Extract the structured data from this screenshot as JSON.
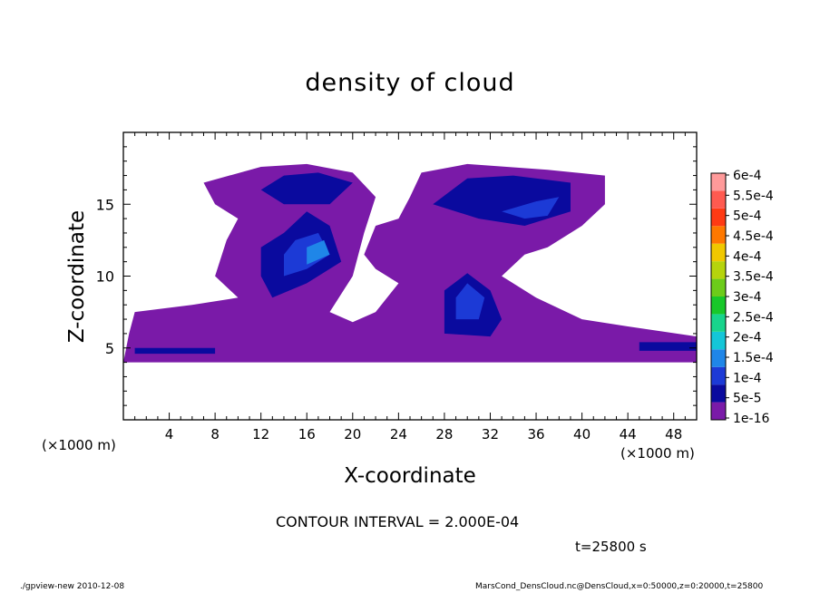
{
  "chart_data": {
    "type": "heatmap",
    "title": "density of cloud",
    "xlabel": "X-coordinate",
    "ylabel": "Z-coordinate",
    "x_unit_label": "(×1000 m)",
    "xlim": [
      0,
      50
    ],
    "ylim": [
      0,
      20
    ],
    "x_ticks": [
      4,
      8,
      12,
      16,
      20,
      24,
      28,
      32,
      36,
      40,
      44,
      48
    ],
    "y_ticks": [
      5,
      10,
      15
    ],
    "grid": false,
    "colorbar": {
      "placement": "right",
      "labels": [
        "1e-16",
        "5e-5",
        "1e-4",
        "1.5e-4",
        "2e-4",
        "2.5e-4",
        "3e-4",
        "3.5e-4",
        "4e-4",
        "4.5e-4",
        "5e-4",
        "5.5e-4",
        "6e-4"
      ],
      "colors": [
        "#7a1aa8",
        "#0a0a9e",
        "#1c3ad6",
        "#1f86e8",
        "#14c6d8",
        "#18d48c",
        "#18c82a",
        "#6ccc1a",
        "#b6d40c",
        "#f0c800",
        "#ff7800",
        "#ff3a14",
        "#ff5a50",
        "#ff9a9a"
      ]
    },
    "regions": [
      {
        "level": "1e-16",
        "shape": [
          [
            0,
            4.0
          ],
          [
            50,
            4.0
          ],
          [
            50,
            5.8
          ],
          [
            44,
            6.5
          ],
          [
            40,
            7.0
          ],
          [
            36,
            8.5
          ],
          [
            33,
            10.0
          ],
          [
            35,
            11.5
          ],
          [
            37,
            12.0
          ],
          [
            40,
            13.5
          ],
          [
            42,
            15.0
          ],
          [
            42,
            17.0
          ],
          [
            37,
            17.4
          ],
          [
            30,
            17.8
          ],
          [
            26,
            17.2
          ],
          [
            25,
            15.5
          ],
          [
            24,
            14.0
          ],
          [
            22,
            13.5
          ],
          [
            21,
            11.5
          ],
          [
            22,
            10.5
          ],
          [
            24,
            9.5
          ],
          [
            22,
            7.5
          ],
          [
            20,
            6.8
          ],
          [
            18,
            7.5
          ],
          [
            20,
            10.0
          ],
          [
            21,
            13.0
          ],
          [
            22,
            15.5
          ],
          [
            20,
            17.2
          ],
          [
            16,
            17.8
          ],
          [
            12,
            17.6
          ],
          [
            7,
            16.5
          ],
          [
            8,
            15.0
          ],
          [
            10,
            14.0
          ],
          [
            9,
            12.5
          ],
          [
            8,
            10.0
          ],
          [
            10,
            8.5
          ],
          [
            6,
            8.0
          ],
          [
            1,
            7.5
          ],
          [
            0.5,
            6.0
          ]
        ]
      },
      {
        "level": "5e-5",
        "shape": [
          [
            13,
            8.5
          ],
          [
            16,
            9.5
          ],
          [
            19,
            11.0
          ],
          [
            18,
            13.5
          ],
          [
            16,
            14.5
          ],
          [
            14,
            13.0
          ],
          [
            12,
            12.0
          ],
          [
            12,
            10.0
          ]
        ]
      },
      {
        "level": "5e-5",
        "shape": [
          [
            28,
            6.0
          ],
          [
            32,
            5.8
          ],
          [
            33,
            7.0
          ],
          [
            32,
            9.0
          ],
          [
            30,
            10.2
          ],
          [
            28,
            9.0
          ]
        ]
      },
      {
        "level": "5e-5",
        "shape": [
          [
            27,
            15.0
          ],
          [
            30,
            16.8
          ],
          [
            34,
            17.0
          ],
          [
            39,
            16.5
          ],
          [
            39,
            14.5
          ],
          [
            35,
            13.5
          ],
          [
            31,
            14.0
          ]
        ]
      },
      {
        "level": "5e-5",
        "shape": [
          [
            12,
            16.0
          ],
          [
            14,
            17.0
          ],
          [
            17,
            17.2
          ],
          [
            20,
            16.5
          ],
          [
            18,
            15.0
          ],
          [
            14,
            15.0
          ]
        ]
      },
      {
        "level": "5e-5",
        "shape": [
          [
            1,
            4.6
          ],
          [
            8,
            4.6
          ],
          [
            8,
            5.0
          ],
          [
            1,
            5.0
          ]
        ]
      },
      {
        "level": "5e-5",
        "shape": [
          [
            45,
            4.8
          ],
          [
            50,
            4.8
          ],
          [
            50,
            5.4
          ],
          [
            45,
            5.4
          ]
        ]
      },
      {
        "level": "1e-4",
        "shape": [
          [
            14,
            10.0
          ],
          [
            16,
            10.5
          ],
          [
            18,
            11.5
          ],
          [
            17,
            13.0
          ],
          [
            15,
            12.5
          ],
          [
            14,
            11.5
          ]
        ]
      },
      {
        "level": "1e-4",
        "shape": [
          [
            29,
            7.0
          ],
          [
            31,
            7.0
          ],
          [
            31.5,
            8.5
          ],
          [
            30,
            9.5
          ],
          [
            29,
            8.5
          ]
        ]
      },
      {
        "level": "1e-4",
        "shape": [
          [
            33,
            14.5
          ],
          [
            36,
            15.2
          ],
          [
            38,
            15.5
          ],
          [
            37,
            14.2
          ],
          [
            35,
            14.0
          ]
        ]
      },
      {
        "level": "1.5e-4",
        "shape": [
          [
            16,
            10.8
          ],
          [
            18,
            11.5
          ],
          [
            17.5,
            12.5
          ],
          [
            16,
            12.0
          ]
        ]
      }
    ]
  },
  "annotations": {
    "contour_interval": "CONTOUR INTERVAL = 2.000E-04",
    "time": "t=25800 s"
  },
  "footer": {
    "left": "./gpview-new   2010-12-08",
    "right": "MarsCond_DensCloud.nc@DensCloud,x=0:50000,z=0:20000,t=25800"
  }
}
